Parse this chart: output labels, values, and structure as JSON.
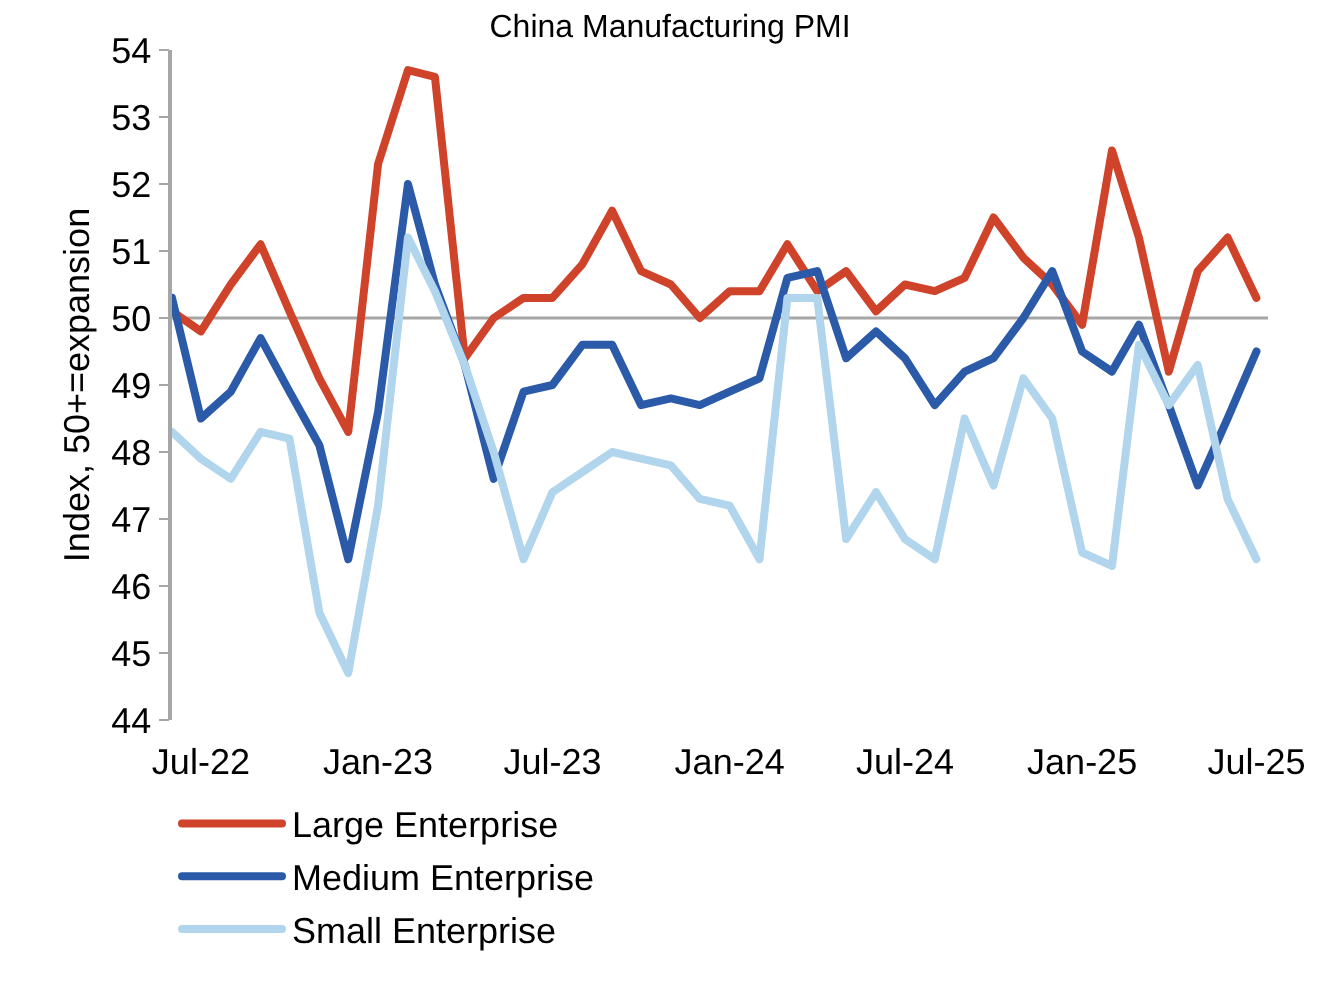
{
  "chart_data": {
    "type": "line",
    "title": "China Manufacturing PMI",
    "ylabel": "Index, 50+=expansion",
    "x": [
      "2022-06",
      "2022-07",
      "2022-08",
      "2022-09",
      "2022-10",
      "2022-11",
      "2022-12",
      "2023-01",
      "2023-02",
      "2023-03",
      "2023-04",
      "2023-05",
      "2023-06",
      "2023-07",
      "2023-08",
      "2023-09",
      "2023-10",
      "2023-11",
      "2023-12",
      "2024-01",
      "2024-02",
      "2024-03",
      "2024-04",
      "2024-05",
      "2024-06",
      "2024-07",
      "2024-08",
      "2024-09",
      "2024-10",
      "2024-11",
      "2024-12",
      "2025-01",
      "2025-02",
      "2025-03",
      "2025-04",
      "2025-05",
      "2025-06",
      "2025-07"
    ],
    "series": [
      {
        "name": "Large Enterprise",
        "color": "#d0432b",
        "values": [
          50.1,
          49.8,
          50.5,
          51.1,
          50.1,
          49.1,
          48.3,
          52.3,
          53.7,
          53.6,
          49.4,
          50.0,
          50.3,
          50.3,
          50.8,
          51.6,
          50.7,
          50.5,
          50.0,
          50.4,
          50.4,
          51.1,
          50.4,
          50.7,
          50.1,
          50.5,
          50.4,
          50.6,
          51.5,
          50.9,
          50.5,
          49.9,
          52.5,
          51.2,
          49.2,
          50.7,
          51.2,
          50.3
        ]
      },
      {
        "name": "Medium Enterprise",
        "color": "#2b5aa8",
        "values": [
          50.3,
          48.5,
          48.9,
          49.7,
          48.9,
          48.1,
          46.4,
          48.6,
          52.0,
          50.5,
          49.3,
          47.6,
          48.9,
          49.0,
          49.6,
          49.6,
          48.7,
          48.8,
          48.7,
          48.9,
          49.1,
          50.6,
          50.7,
          49.4,
          49.8,
          49.4,
          48.7,
          49.2,
          49.4,
          50.0,
          50.7,
          49.5,
          49.2,
          49.9,
          48.7,
          47.5,
          48.5,
          49.5
        ]
      },
      {
        "name": "Small Enterprise",
        "color": "#b0d5ec",
        "values": [
          48.3,
          47.9,
          47.6,
          48.3,
          48.2,
          45.6,
          44.7,
          47.2,
          51.2,
          50.4,
          49.3,
          48.0,
          46.4,
          47.4,
          47.7,
          48.0,
          47.9,
          47.8,
          47.3,
          47.2,
          46.4,
          50.3,
          50.3,
          46.7,
          47.4,
          46.7,
          46.4,
          48.5,
          47.5,
          49.1,
          48.5,
          46.5,
          46.3,
          49.6,
          48.7,
          49.3,
          47.3,
          46.4
        ]
      }
    ],
    "xlim": [
      "2022-06-01",
      "2025-07-13"
    ],
    "xticks": [
      {
        "value": "2022-07",
        "label": "Jul-22"
      },
      {
        "value": "2023-01",
        "label": "Jan-23"
      },
      {
        "value": "2023-07",
        "label": "Jul-23"
      },
      {
        "value": "2024-01",
        "label": "Jan-24"
      },
      {
        "value": "2024-07",
        "label": "Jul-24"
      },
      {
        "value": "2025-01",
        "label": "Jan-25"
      },
      {
        "value": "2025-07",
        "label": "Jul-25"
      }
    ],
    "ylim": [
      44,
      54
    ],
    "yticks": [
      44,
      45,
      46,
      47,
      48,
      49,
      50,
      51,
      52,
      53,
      54
    ],
    "ref_lines": [
      {
        "axis": "y",
        "value": 50,
        "color": "#a6a6a6"
      }
    ],
    "grid": false,
    "legend": "bottom",
    "marker": "none",
    "line_style": "solid"
  }
}
